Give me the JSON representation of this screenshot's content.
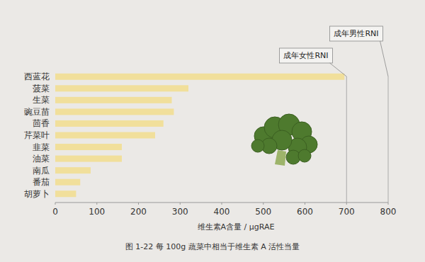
{
  "chart_data": {
    "type": "bar",
    "orientation": "horizontal",
    "title": "图 1-22  每 100g 蔬菜中相当于维生素 A 活性当量",
    "x_label": "维生素A含量 / μgRAE",
    "categories": [
      "西蓝花",
      "菠菜",
      "生菜",
      "豌豆苗",
      "茴香",
      "芹菜叶",
      "韭菜",
      "油菜",
      "南瓜",
      "番茄",
      "胡萝卜"
    ],
    "values": [
      695,
      320,
      280,
      285,
      260,
      240,
      160,
      160,
      85,
      60,
      50
    ],
    "color": "#f1df9b",
    "xlim": [
      0,
      800
    ],
    "xticks": [
      0,
      100,
      200,
      300,
      400,
      500,
      600,
      700,
      800
    ],
    "grid": false,
    "annotations": [
      {
        "text": "成年女性RNI",
        "x": 700
      },
      {
        "text": "成年男性RNI",
        "x": 800
      }
    ]
  }
}
